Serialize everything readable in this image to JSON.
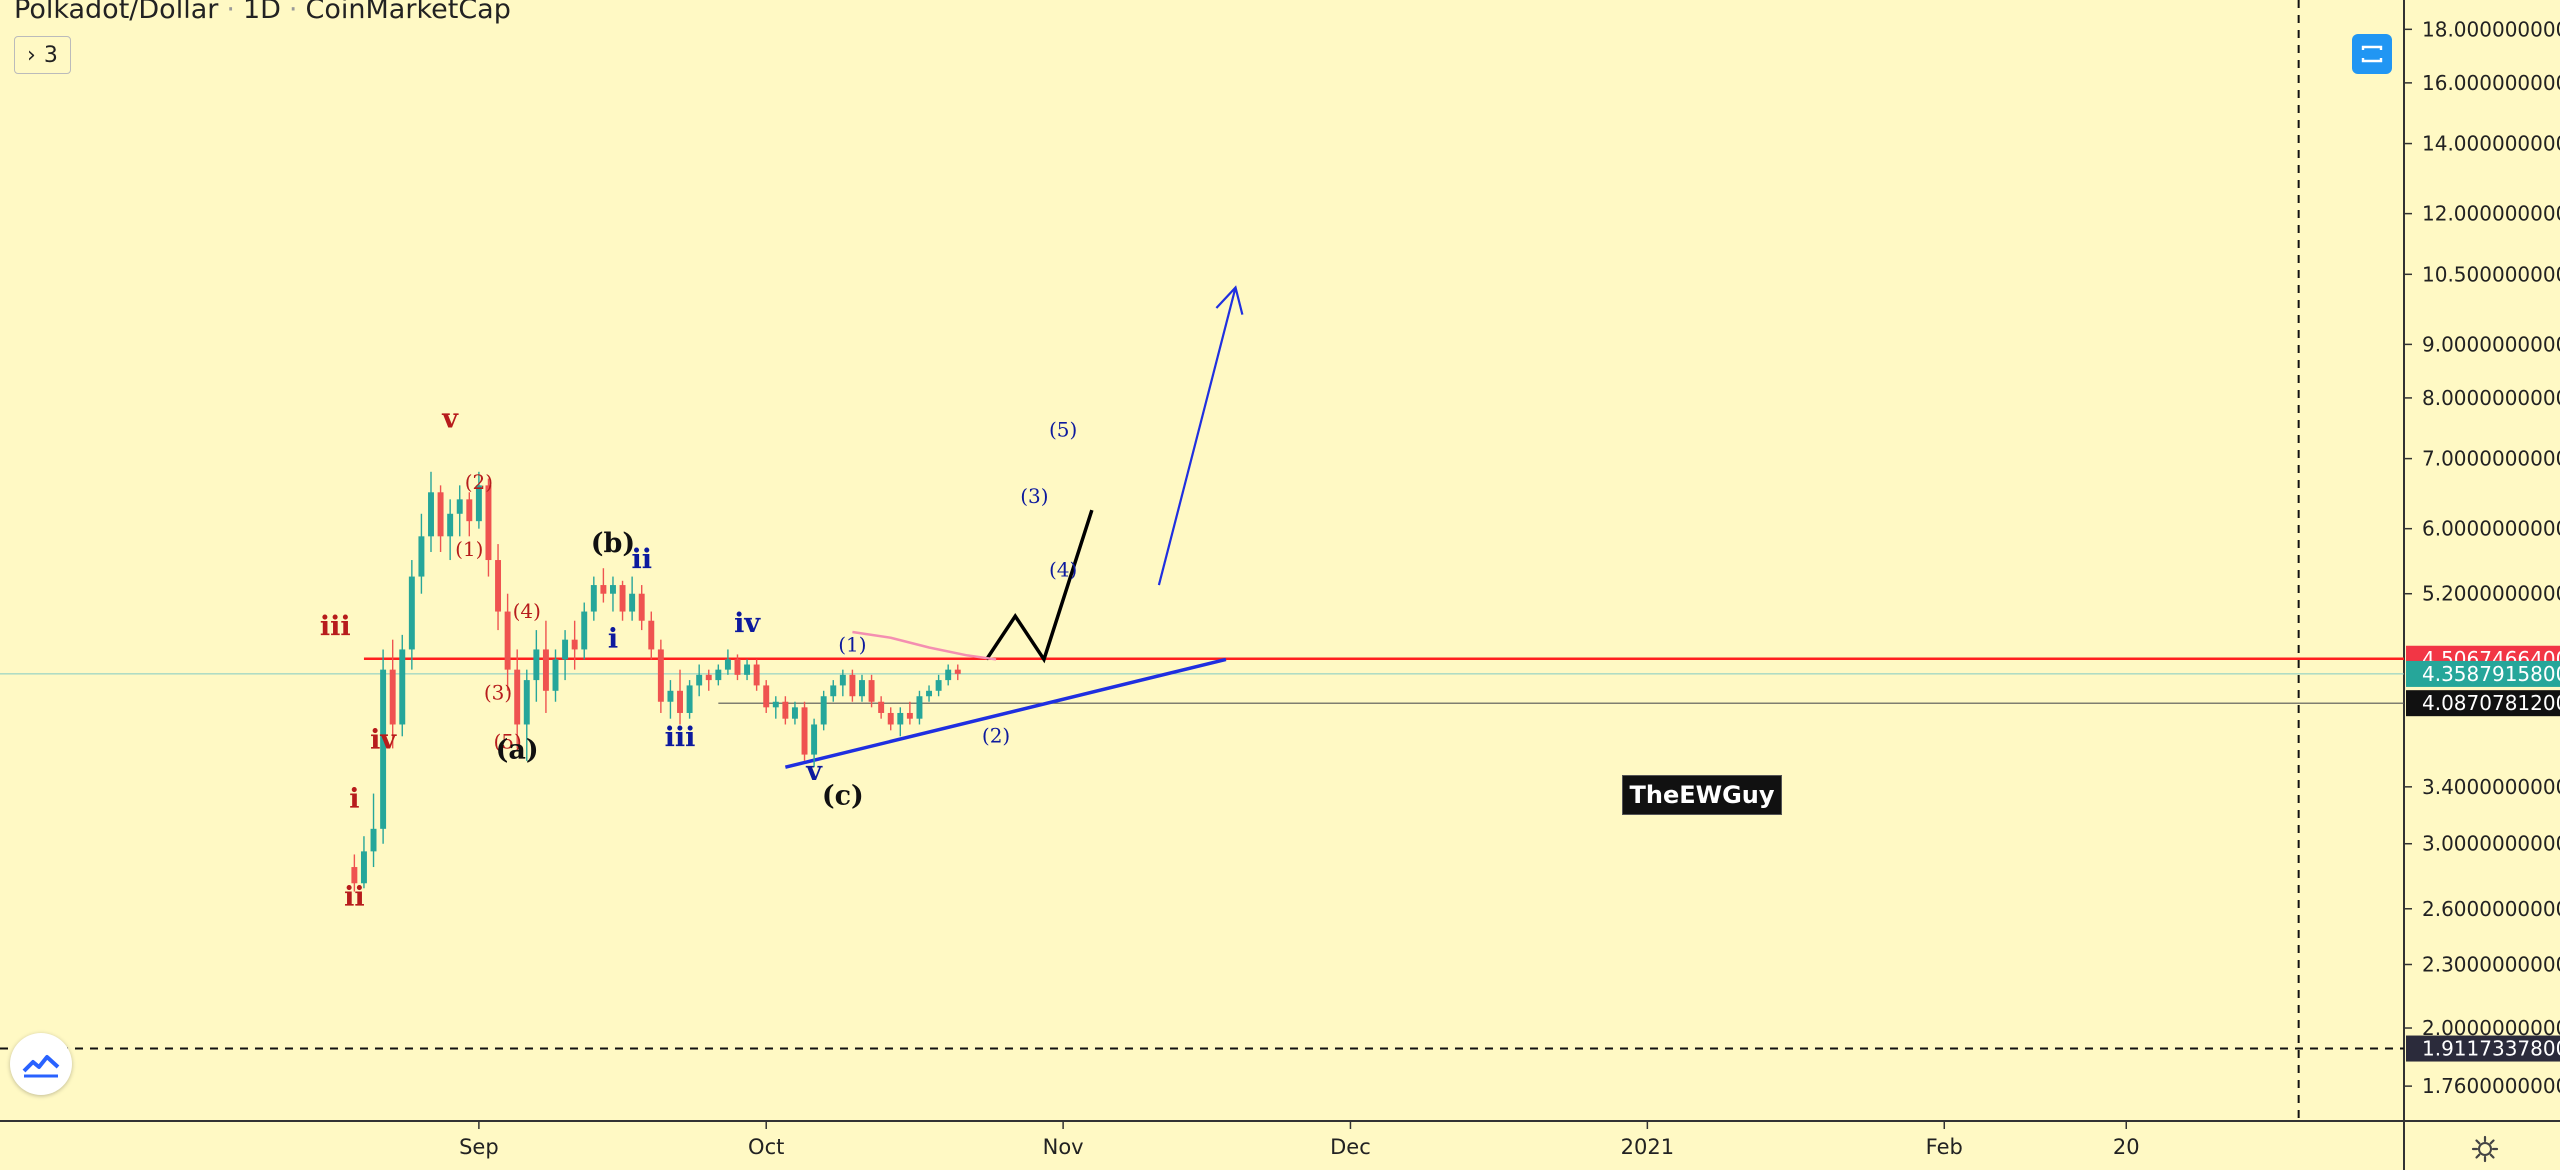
{
  "header": {
    "pair": "Polkadot/Dollar",
    "interval": "1D",
    "source": "CoinMarketCap",
    "indicator_count": "3",
    "watermark": "TheEWGuy"
  },
  "colors": {
    "background": "#fff9c4",
    "up_candle": "#26a69a",
    "down_candle": "#ef5350",
    "resistance": "#ff1f1f",
    "trendline": "#1f2fe0",
    "projection": "#000000",
    "red_label": "#b71c1c",
    "blue_label": "#0d1a9e"
  },
  "chart_data": {
    "type": "candlestick",
    "title": "Polkadot/Dollar · 1D · CoinMarketCap",
    "y_scale": "log",
    "y_range": [
      1.63,
      19.2
    ],
    "x_range": [
      "2020-07-13",
      "2021-03-21"
    ],
    "price_axis_ticks": [
      "18.0000000000",
      "16.0000000000",
      "14.0000000000",
      "12.0000000000",
      "10.5000000000",
      "9.0000000000",
      "8.0000000000",
      "7.0000000000",
      "6.0000000000",
      "5.2000000000",
      "3.4000000000",
      "3.0000000000",
      "2.6000000000",
      "2.3000000000",
      "2.0000000000",
      "1.7600000000"
    ],
    "time_axis_labels": [
      {
        "date": "2020-09-01",
        "label": "Sep"
      },
      {
        "date": "2020-10-01",
        "label": "Oct"
      },
      {
        "date": "2020-11-01",
        "label": "Nov"
      },
      {
        "date": "2020-12-01",
        "label": "Dec"
      },
      {
        "date": "2021-01-01",
        "label": "2021"
      },
      {
        "date": "2021-02-01",
        "label": "Feb"
      },
      {
        "date": "2021-02-20",
        "label": "20"
      }
    ],
    "price_badges": [
      {
        "name": "resistance",
        "value": "4.5067466400"
      },
      {
        "name": "last-price",
        "value": "4.3587915800"
      },
      {
        "name": "horizontal-support",
        "value": "4.0870781200"
      },
      {
        "name": "dashed-level",
        "value": "1.9117337800"
      }
    ],
    "candles": {
      "start": "2020-08-19",
      "ohlc": [
        [
          2.85,
          2.93,
          2.7,
          2.75
        ],
        [
          2.75,
          3.05,
          2.72,
          2.95
        ],
        [
          2.95,
          3.35,
          2.85,
          3.1
        ],
        [
          3.1,
          4.6,
          3.0,
          4.4
        ],
        [
          4.4,
          4.7,
          3.7,
          3.9
        ],
        [
          3.9,
          4.75,
          3.8,
          4.6
        ],
        [
          4.6,
          5.6,
          4.4,
          5.4
        ],
        [
          5.4,
          6.2,
          5.2,
          5.9
        ],
        [
          5.9,
          6.8,
          5.7,
          6.5
        ],
        [
          6.5,
          6.6,
          5.7,
          5.9
        ],
        [
          5.9,
          6.4,
          5.6,
          6.2
        ],
        [
          6.2,
          6.6,
          5.9,
          6.4
        ],
        [
          6.4,
          6.5,
          5.9,
          6.1
        ],
        [
          6.1,
          6.8,
          6.0,
          6.6
        ],
        [
          6.6,
          6.7,
          5.4,
          5.6
        ],
        [
          5.6,
          5.8,
          4.8,
          5.0
        ],
        [
          5.0,
          5.2,
          4.2,
          4.4
        ],
        [
          4.4,
          4.6,
          3.7,
          3.9
        ],
        [
          3.9,
          4.4,
          3.6,
          4.3
        ],
        [
          4.3,
          4.8,
          4.1,
          4.6
        ],
        [
          4.6,
          4.9,
          4.0,
          4.2
        ],
        [
          4.2,
          4.6,
          4.1,
          4.5
        ],
        [
          4.5,
          4.8,
          4.3,
          4.7
        ],
        [
          4.7,
          4.9,
          4.4,
          4.6
        ],
        [
          4.6,
          5.1,
          4.5,
          5.0
        ],
        [
          5.0,
          5.4,
          4.9,
          5.3
        ],
        [
          5.3,
          5.5,
          5.1,
          5.2
        ],
        [
          5.2,
          5.4,
          5.0,
          5.3
        ],
        [
          5.3,
          5.35,
          4.9,
          5.0
        ],
        [
          5.0,
          5.4,
          4.9,
          5.2
        ],
        [
          5.2,
          5.3,
          4.8,
          4.9
        ],
        [
          4.9,
          5.0,
          4.5,
          4.6
        ],
        [
          4.6,
          4.7,
          4.0,
          4.1
        ],
        [
          4.1,
          4.3,
          3.95,
          4.2
        ],
        [
          4.2,
          4.4,
          3.9,
          4.0
        ],
        [
          4.0,
          4.3,
          3.95,
          4.25
        ],
        [
          4.25,
          4.45,
          4.15,
          4.35
        ],
        [
          4.35,
          4.4,
          4.2,
          4.3
        ],
        [
          4.3,
          4.45,
          4.25,
          4.4
        ],
        [
          4.4,
          4.6,
          4.35,
          4.5
        ],
        [
          4.5,
          4.55,
          4.3,
          4.35
        ],
        [
          4.35,
          4.5,
          4.3,
          4.45
        ],
        [
          4.45,
          4.5,
          4.2,
          4.25
        ],
        [
          4.25,
          4.3,
          4.0,
          4.05
        ],
        [
          4.05,
          4.15,
          3.95,
          4.1
        ],
        [
          4.1,
          4.15,
          3.9,
          3.95
        ],
        [
          3.95,
          4.1,
          3.9,
          4.05
        ],
        [
          4.05,
          4.1,
          3.6,
          3.65
        ],
        [
          3.65,
          3.95,
          3.55,
          3.9
        ],
        [
          3.9,
          4.2,
          3.85,
          4.15
        ],
        [
          4.15,
          4.3,
          4.1,
          4.25
        ],
        [
          4.25,
          4.4,
          4.15,
          4.35
        ],
        [
          4.35,
          4.4,
          4.1,
          4.15
        ],
        [
          4.15,
          4.35,
          4.1,
          4.3
        ],
        [
          4.3,
          4.35,
          4.05,
          4.1
        ],
        [
          4.1,
          4.15,
          3.95,
          4.0
        ],
        [
          4.0,
          4.05,
          3.85,
          3.9
        ],
        [
          3.9,
          4.05,
          3.8,
          4.0
        ],
        [
          4.0,
          4.1,
          3.9,
          3.95
        ],
        [
          3.95,
          4.2,
          3.9,
          4.15
        ],
        [
          4.15,
          4.25,
          4.1,
          4.2
        ],
        [
          4.2,
          4.35,
          4.15,
          4.3
        ],
        [
          4.3,
          4.45,
          4.25,
          4.4
        ],
        [
          4.4,
          4.45,
          4.3,
          4.36
        ]
      ]
    },
    "moving_average": {
      "color": "#f48fb1",
      "points": [
        [
          "2020-10-10",
          4.78
        ],
        [
          "2020-10-14",
          4.72
        ],
        [
          "2020-10-18",
          4.62
        ],
        [
          "2020-10-22",
          4.54
        ],
        [
          "2020-10-25",
          4.5
        ]
      ]
    },
    "lines": [
      {
        "name": "resistance-line",
        "type": "horizontal",
        "value": 4.50674664,
        "from": "2020-08-20",
        "to": "2021-03-21"
      },
      {
        "name": "support-line",
        "type": "horizontal",
        "value": 4.08707812,
        "from": "2020-09-26",
        "to": "2021-03-21"
      },
      {
        "name": "dashed-level-line",
        "type": "horizontal",
        "value": 1.91173378,
        "from": "2020-07-13",
        "to": "2021-03-21"
      },
      {
        "name": "trendline",
        "type": "segment",
        "points": [
          [
            "2020-10-03",
            3.55
          ],
          [
            "2020-11-18",
            4.5
          ]
        ]
      },
      {
        "name": "elliott-projection",
        "type": "polyline",
        "points": [
          [
            "2020-10-24",
            4.5
          ],
          [
            "2020-10-27",
            4.95
          ],
          [
            "2020-10-30",
            4.5
          ],
          [
            "2020-11-04",
            6.25
          ]
        ]
      },
      {
        "name": "target-arrow",
        "type": "arrow",
        "points": [
          [
            "2020-11-11",
            5.3
          ],
          [
            "2020-11-19",
            10.2
          ]
        ]
      },
      {
        "name": "vertical-dashed-marker",
        "type": "vertical",
        "date": "2021-03-10"
      }
    ],
    "wave_labels": [
      {
        "text": "ii",
        "date": "2020-08-19",
        "price": 2.62,
        "size": "lg",
        "color": "red"
      },
      {
        "text": "i",
        "date": "2020-08-19",
        "price": 3.25,
        "size": "lg",
        "color": "red"
      },
      {
        "text": "iii",
        "date": "2020-08-17",
        "price": 4.75,
        "size": "lg",
        "color": "red"
      },
      {
        "text": "iv",
        "date": "2020-08-22",
        "price": 3.7,
        "size": "lg",
        "color": "red"
      },
      {
        "text": "v",
        "date": "2020-08-29",
        "price": 7.5,
        "size": "lg",
        "color": "red"
      },
      {
        "text": "(2)",
        "date": "2020-09-01",
        "price": 6.55,
        "size": "sm",
        "color": "red"
      },
      {
        "text": "(1)",
        "date": "2020-08-31",
        "price": 5.65,
        "size": "sm",
        "color": "red"
      },
      {
        "text": "(4)",
        "date": "2020-09-06",
        "price": 4.93,
        "size": "sm",
        "color": "red"
      },
      {
        "text": "(3)",
        "date": "2020-09-03",
        "price": 4.12,
        "size": "sm",
        "color": "red"
      },
      {
        "text": "(5)",
        "date": "2020-09-04",
        "price": 3.7,
        "size": "sm",
        "color": "red"
      },
      {
        "text": "(a)",
        "date": "2020-09-05",
        "price": 3.62,
        "size": "lg",
        "color": "black"
      },
      {
        "text": "(b)",
        "date": "2020-09-15",
        "price": 5.7,
        "size": "lg",
        "color": "black"
      },
      {
        "text": "(c)",
        "date": "2020-10-09",
        "price": 3.27,
        "size": "lg",
        "color": "black"
      },
      {
        "text": "ii",
        "date": "2020-09-18",
        "price": 5.5,
        "size": "lg",
        "color": "blue"
      },
      {
        "text": "i",
        "date": "2020-09-15",
        "price": 4.62,
        "size": "lg",
        "color": "blue"
      },
      {
        "text": "iii",
        "date": "2020-09-22",
        "price": 3.72,
        "size": "lg",
        "color": "blue"
      },
      {
        "text": "iv",
        "date": "2020-09-29",
        "price": 4.78,
        "size": "lg",
        "color": "blue"
      },
      {
        "text": "v",
        "date": "2020-10-06",
        "price": 3.45,
        "size": "lg",
        "color": "blue"
      },
      {
        "text": "(1)",
        "date": "2020-10-10",
        "price": 4.58,
        "size": "sm",
        "color": "blue"
      },
      {
        "text": "(2)",
        "date": "2020-10-25",
        "price": 3.75,
        "size": "sm",
        "color": "blue"
      },
      {
        "text": "(3)",
        "date": "2020-10-29",
        "price": 6.35,
        "size": "sm",
        "color": "blue"
      },
      {
        "text": "(4)",
        "date": "2020-11-01",
        "price": 5.4,
        "size": "sm",
        "color": "blue"
      },
      {
        "text": "(5)",
        "date": "2020-11-01",
        "price": 7.35,
        "size": "sm",
        "color": "blue"
      }
    ]
  }
}
